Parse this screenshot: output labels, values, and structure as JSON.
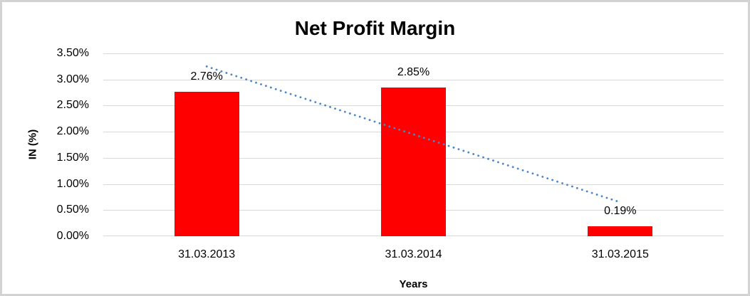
{
  "chart_data": {
    "type": "bar",
    "title": "Net Profit Margin",
    "xlabel": "Years",
    "ylabel": "IN (%)",
    "categories": [
      "31.03.2013",
      "31.03.2014",
      "31.03.2015"
    ],
    "values": [
      2.76,
      2.85,
      0.19
    ],
    "data_labels": [
      "2.76%",
      "2.85%",
      "0.19%"
    ],
    "ylim": [
      0,
      3.5
    ],
    "ytick_step": 0.5,
    "ytick_labels": [
      "0.00%",
      "0.50%",
      "1.00%",
      "1.50%",
      "2.00%",
      "2.50%",
      "3.00%",
      "3.50%"
    ],
    "grid": true,
    "legend": "none",
    "bar_color": "#ff0000",
    "gridline_color": "#d9d9d9",
    "frame_border_color": "#d3d3d3",
    "title_color": "#000000",
    "trendline": {
      "style": "dotted",
      "color": "#4a86c8",
      "start_value": 3.25,
      "end_value": 0.65
    }
  }
}
